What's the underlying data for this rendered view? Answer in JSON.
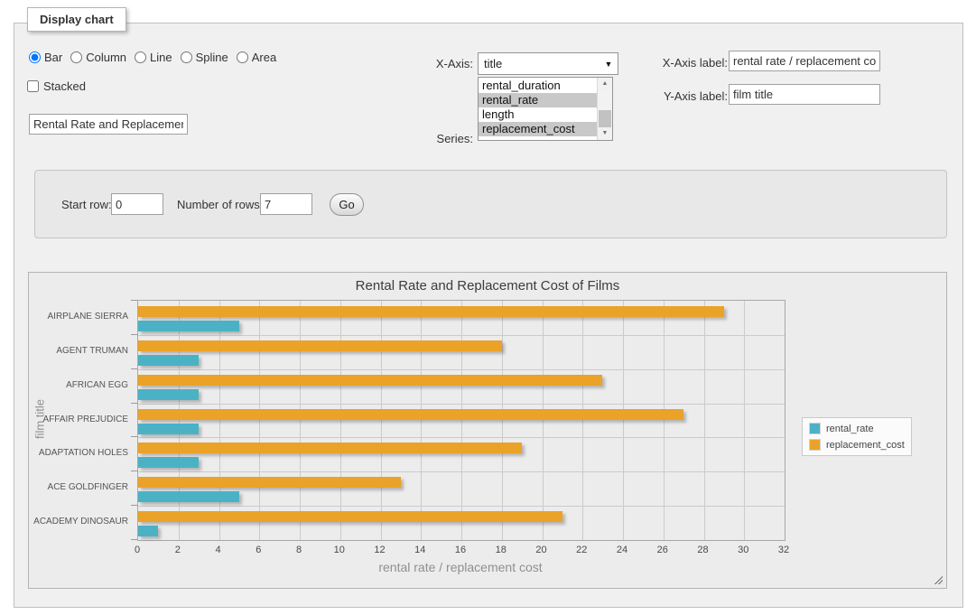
{
  "panel": {
    "legend": "Display chart",
    "chart_type_options": [
      {
        "label": "Bar",
        "selected": true
      },
      {
        "label": "Column",
        "selected": false
      },
      {
        "label": "Line",
        "selected": false
      },
      {
        "label": "Spline",
        "selected": false
      },
      {
        "label": "Area",
        "selected": false
      }
    ],
    "stacked": {
      "label": "Stacked",
      "checked": false
    },
    "chart_title_input": {
      "value": "Rental Rate and Replacemer"
    },
    "x_axis": {
      "label": "X-Axis:",
      "selected_value": "title"
    },
    "series_select": {
      "label": "Series:",
      "options": [
        {
          "label": "rental_duration",
          "selected": false
        },
        {
          "label": "rental_rate",
          "selected": true
        },
        {
          "label": "length",
          "selected": false
        },
        {
          "label": "replacement_cost",
          "selected": true
        }
      ]
    },
    "x_axis_label_field": {
      "label": "X-Axis label:",
      "value": "rental rate / replacement cost"
    },
    "y_axis_label_field": {
      "label": "Y-Axis label:",
      "value": "film title"
    }
  },
  "row_controls": {
    "start_row": {
      "label": "Start row:",
      "value": "0"
    },
    "number_of_rows": {
      "label": "Number of rows:",
      "value": "7"
    },
    "go_button": "Go"
  },
  "icons": {
    "dropdown_arrow": "▼",
    "scroll_up": "▲",
    "scroll_down": "▼"
  },
  "colors": {
    "rental_rate": "#4bb2c5",
    "replacement_cost": "#eaa228",
    "selected_option_bg": "#c8c8c8"
  },
  "chart_data": {
    "type": "bar",
    "orientation": "horizontal",
    "title": "Rental Rate and Replacement Cost of Films",
    "xlabel": "rental rate / replacement cost",
    "ylabel": "film title",
    "categories": [
      "AIRPLANE SIERRA",
      "AGENT TRUMAN",
      "AFRICAN EGG",
      "AFFAIR PREJUDICE",
      "ADAPTATION HOLES",
      "ACE GOLDFINGER",
      "ACADEMY DINOSAUR"
    ],
    "series": [
      {
        "name": "rental_rate",
        "color": "#4bb2c5",
        "values": [
          4.99,
          2.99,
          2.99,
          2.99,
          2.99,
          4.99,
          0.99
        ]
      },
      {
        "name": "replacement_cost",
        "color": "#eaa228",
        "values": [
          28.99,
          17.99,
          22.99,
          26.99,
          18.99,
          12.99,
          20.99
        ]
      }
    ],
    "bar_order_top_to_bottom": [
      "replacement_cost",
      "rental_rate"
    ],
    "xlim": [
      0,
      32
    ],
    "xticks": [
      0,
      2,
      4,
      6,
      8,
      10,
      12,
      14,
      16,
      18,
      20,
      22,
      24,
      26,
      28,
      30,
      32
    ],
    "grid": true,
    "legend": {
      "position": "right",
      "entries": [
        "rental_rate",
        "replacement_cost"
      ]
    }
  }
}
